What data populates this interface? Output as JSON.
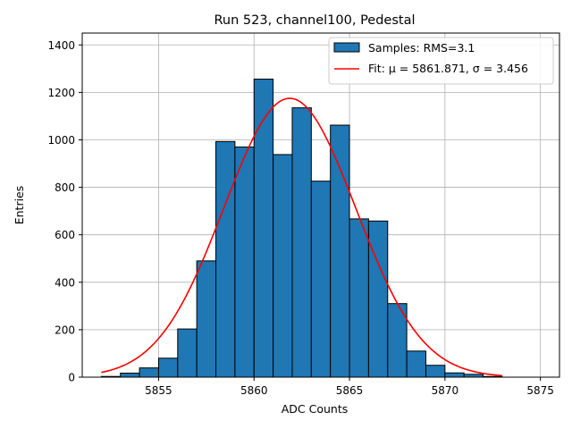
{
  "chart_data": {
    "type": "bar",
    "title": "Run 523, channel100, Pedestal",
    "xlabel": "ADC Counts",
    "ylabel": "Entries",
    "xlim": [
      5851,
      5876
    ],
    "ylim": [
      0,
      1450
    ],
    "xticks": [
      5855,
      5860,
      5865,
      5870,
      5875
    ],
    "yticks": [
      0,
      200,
      400,
      600,
      800,
      1000,
      1200,
      1400
    ],
    "grid": true,
    "legend_position": "top-right",
    "bins": {
      "edges": [
        5852,
        5853,
        5854,
        5855,
        5856,
        5857,
        5858,
        5859,
        5860,
        5861,
        5862,
        5863,
        5864,
        5865,
        5866,
        5867,
        5868,
        5869,
        5870,
        5871,
        5872,
        5873
      ],
      "counts": [
        3,
        17,
        39,
        80,
        203,
        490,
        993,
        970,
        1256,
        938,
        1135,
        826,
        1062,
        667,
        658,
        310,
        110,
        50,
        18,
        12,
        3
      ],
      "fill_color": "#1f77b4",
      "edge_color": "#000000"
    },
    "fit": {
      "mu": 5861.871,
      "sigma": 3.456,
      "peak": 1175,
      "x_range": [
        5852,
        5873
      ],
      "color": "#ff0000"
    },
    "legend": [
      {
        "label": "Samples: RMS=3.1",
        "kind": "patch",
        "color": "#1f77b4"
      },
      {
        "label": "Fit: μ = 5861.871, σ = 3.456",
        "kind": "line",
        "color": "#ff0000"
      }
    ]
  }
}
